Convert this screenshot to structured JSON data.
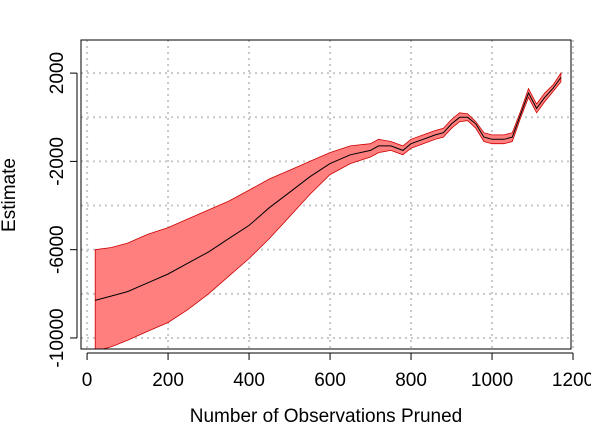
{
  "chart_data": {
    "type": "area",
    "title": "",
    "xlabel": "Number of Observations Pruned",
    "ylabel": "Estimate",
    "xlim": [
      -15,
      1195
    ],
    "ylim": [
      -10500,
      3500
    ],
    "xticks": [
      0,
      200,
      400,
      600,
      800,
      1000,
      1200
    ],
    "xtick_labels": [
      "0",
      "200",
      "400",
      "600",
      "800",
      "1000",
      "1200"
    ],
    "yticks": [
      -10000,
      -6000,
      -2000,
      2000
    ],
    "ytick_labels": [
      "-10000",
      "-6000",
      "-2000",
      "2000"
    ],
    "ygrid": [
      -10000,
      -8000,
      -6000,
      -4000,
      -2000,
      0,
      2000
    ],
    "grid": true,
    "colors": {
      "band_fill": "#ff7f7f",
      "band_edge": "#cc0000",
      "estimate_line": "#000000",
      "grid": "#c8c8c8"
    },
    "series": [
      {
        "x": [
          20,
          60,
          100,
          150,
          200,
          250,
          300,
          350,
          400,
          450,
          500,
          550,
          600,
          650,
          700,
          720,
          750,
          780,
          800,
          830,
          860,
          880,
          900,
          920,
          940,
          960,
          980,
          1000,
          1030,
          1050,
          1070,
          1090,
          1110,
          1130,
          1150,
          1170
        ],
        "y": [
          -8300,
          -8100,
          -7900,
          -7500,
          -7100,
          -6600,
          -6100,
          -5500,
          -4900,
          -4100,
          -3400,
          -2700,
          -2100,
          -1700,
          -1500,
          -1300,
          -1300,
          -1500,
          -1200,
          -1000,
          -800,
          -700,
          -300,
          0,
          0,
          -300,
          -900,
          -1000,
          -1000,
          -900,
          100,
          1100,
          400,
          900,
          1300,
          1800
        ],
        "upper": [
          -6000,
          -5900,
          -5700,
          -5300,
          -5000,
          -4600,
          -4200,
          -3800,
          -3300,
          -2800,
          -2400,
          -2000,
          -1600,
          -1300,
          -1200,
          -1000,
          -1100,
          -1300,
          -1000,
          -800,
          -600,
          -500,
          -100,
          200,
          150,
          -200,
          -700,
          -800,
          -800,
          -700,
          250,
          1300,
          600,
          1100,
          1450,
          2000
        ],
        "lower": [
          -10600,
          -10400,
          -10100,
          -9700,
          -9300,
          -8700,
          -8000,
          -7200,
          -6400,
          -5500,
          -4500,
          -3500,
          -2600,
          -2100,
          -1800,
          -1600,
          -1500,
          -1700,
          -1400,
          -1200,
          -1000,
          -900,
          -500,
          -200,
          -150,
          -500,
          -1100,
          -1200,
          -1200,
          -1100,
          -50,
          900,
          200,
          700,
          1150,
          1600
        ]
      }
    ]
  }
}
